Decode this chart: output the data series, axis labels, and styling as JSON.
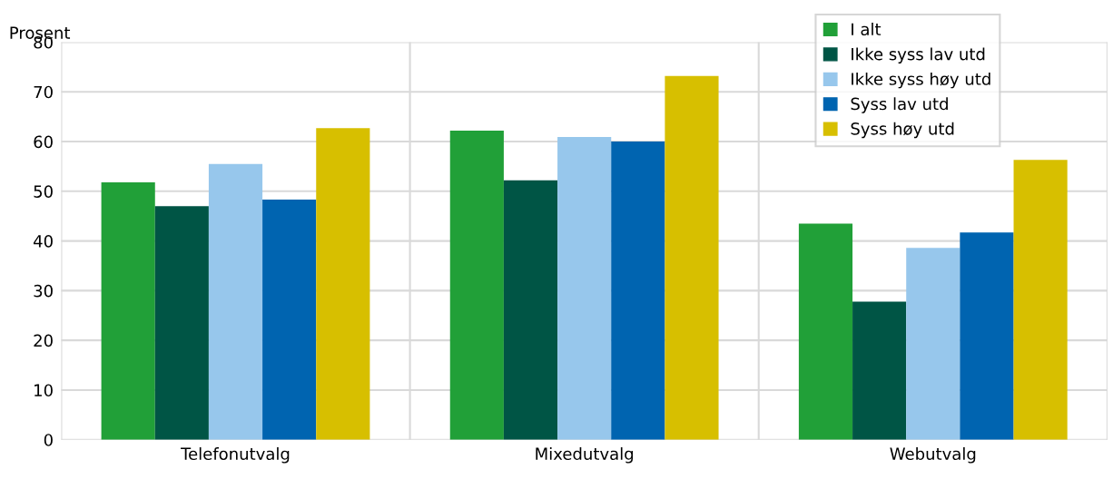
{
  "chart_data": {
    "type": "bar",
    "ylabel": "Prosent",
    "categories": [
      "Telefonutvalg",
      "Mixedutvalg",
      "Webutvalg"
    ],
    "series": [
      {
        "name": "I alt",
        "color": "#21a038",
        "values": [
          51.8,
          62.2,
          43.5
        ]
      },
      {
        "name": "Ikke syss lav utd",
        "color": "#005545",
        "values": [
          47.0,
          52.2,
          27.8
        ]
      },
      {
        "name": "Ikke syss høy utd",
        "color": "#97c7ec",
        "values": [
          55.5,
          60.9,
          38.6
        ]
      },
      {
        "name": "Syss lav utd",
        "color": "#0064b0",
        "values": [
          48.3,
          60.0,
          41.7
        ]
      },
      {
        "name": "Syss høy utd",
        "color": "#d7bf00",
        "values": [
          62.7,
          73.2,
          56.3
        ]
      }
    ],
    "ylim": [
      0,
      80
    ],
    "yticks": [
      0,
      10,
      20,
      30,
      40,
      50,
      60,
      70,
      80
    ],
    "grid": true,
    "legend": "top right"
  }
}
